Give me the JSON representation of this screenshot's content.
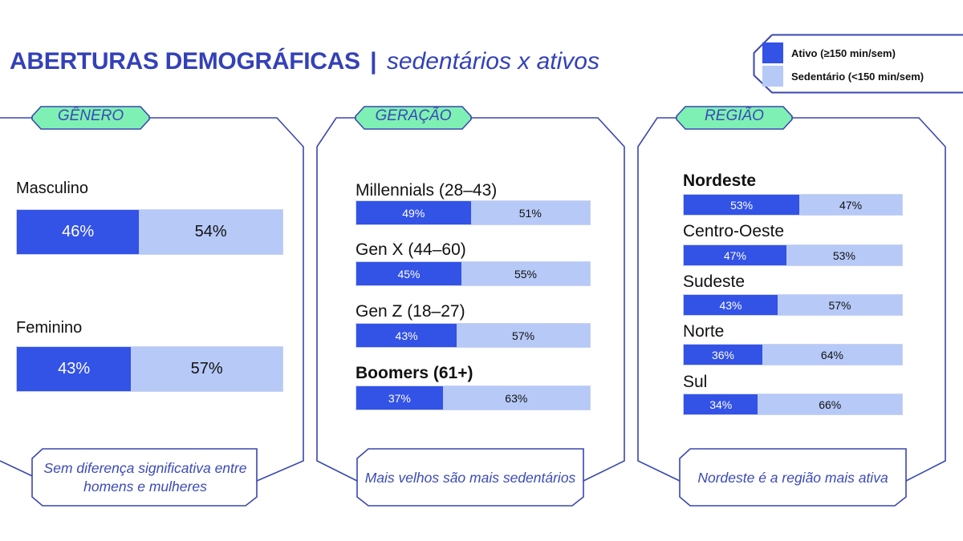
{
  "header": {
    "title": "ABERTURAS DEMOGRÁFICAS",
    "separator": "|",
    "subtitle": "sedentários x ativos"
  },
  "legend": {
    "items": [
      {
        "label": "Ativo (≥150 min/sem)",
        "color": "#3352e6"
      },
      {
        "label": "Sedentário (<150 min/sem)",
        "color": "#b6c9f7"
      }
    ]
  },
  "colors": {
    "ativo": "#3352e6",
    "sedentario": "#b6c9f7",
    "frame": "#3a46b0",
    "tag_fill": "#7ff0b3"
  },
  "panels": [
    {
      "tag": "GÊNERO",
      "note": "Sem diferença significativa entre homens e mulheres"
    },
    {
      "tag": "GERAÇÃO",
      "note": "Mais velhos são mais sedentários"
    },
    {
      "tag": "REGIÃO",
      "note": "Nordeste é a região mais ativa"
    }
  ],
  "chart_data": [
    {
      "type": "bar",
      "orientation": "horizontal",
      "stacked": true,
      "title": "GÊNERO",
      "categories": [
        "Masculino",
        "Feminino"
      ],
      "series": [
        {
          "name": "Ativo (≥150 min/sem)",
          "values": [
            46,
            43
          ],
          "labels": [
            "46%",
            "43%"
          ]
        },
        {
          "name": "Sedentário (<150 min/sem)",
          "values": [
            54,
            57
          ],
          "labels": [
            "54%",
            "57%"
          ]
        }
      ],
      "highlight": []
    },
    {
      "type": "bar",
      "orientation": "horizontal",
      "stacked": true,
      "title": "GERAÇÃO",
      "categories": [
        "Millennials (28–43)",
        "Gen X (44–60)",
        "Gen Z (18–27)",
        "Boomers (61+)"
      ],
      "series": [
        {
          "name": "Ativo (≥150 min/sem)",
          "values": [
            49,
            45,
            43,
            37
          ],
          "labels": [
            "49%",
            "45%",
            "43%",
            "37%"
          ]
        },
        {
          "name": "Sedentário (<150 min/sem)",
          "values": [
            51,
            55,
            57,
            63
          ],
          "labels": [
            "51%",
            "55%",
            "57%",
            "63%"
          ]
        }
      ],
      "highlight": [
        "Boomers (61+)"
      ]
    },
    {
      "type": "bar",
      "orientation": "horizontal",
      "stacked": true,
      "title": "REGIÃO",
      "categories": [
        "Nordeste",
        "Centro-Oeste",
        "Sudeste",
        "Norte",
        "Sul"
      ],
      "series": [
        {
          "name": "Ativo (≥150 min/sem)",
          "values": [
            53,
            47,
            43,
            36,
            34
          ],
          "labels": [
            "53%",
            "47%",
            "43%",
            "36%",
            "34%"
          ]
        },
        {
          "name": "Sedentário (<150 min/sem)",
          "values": [
            47,
            53,
            57,
            64,
            66
          ],
          "labels": [
            "47%",
            "53%",
            "57%",
            "64%",
            "66%"
          ]
        }
      ],
      "highlight": [
        "Nordeste"
      ]
    }
  ]
}
